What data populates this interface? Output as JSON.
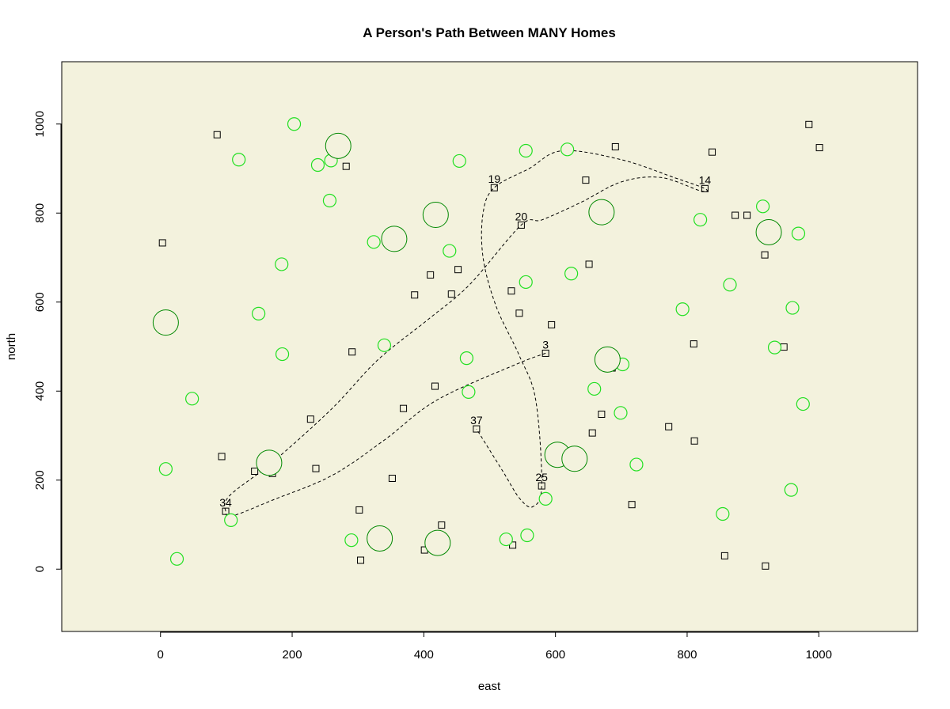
{
  "chart_data": {
    "type": "scatter",
    "title": "A Person's Path Between MANY Homes",
    "xlabel": "east",
    "ylabel": "north",
    "xlim": [
      -150,
      1150
    ],
    "ylim": [
      -140,
      1140
    ],
    "xticks": [
      0,
      200,
      400,
      600,
      800,
      1000
    ],
    "yticks": [
      0,
      200,
      400,
      600,
      800,
      1000
    ],
    "grid": false,
    "background": "#F3F2DD",
    "colors": {
      "home_marker": "#000000",
      "small_circle_edge": "#22E022",
      "large_circle_edge": "#008800",
      "circle_fill": "#F3F2DD",
      "path": "#000000"
    },
    "homes": [
      {
        "x": 3,
        "y": 733
      },
      {
        "x": 86,
        "y": 976
      },
      {
        "x": 282,
        "y": 905
      },
      {
        "x": 93,
        "y": 253
      },
      {
        "x": 143,
        "y": 220
      },
      {
        "x": 170,
        "y": 215
      },
      {
        "x": 99,
        "y": 130
      },
      {
        "x": 228,
        "y": 337
      },
      {
        "x": 236,
        "y": 226
      },
      {
        "x": 291,
        "y": 488
      },
      {
        "x": 302,
        "y": 133
      },
      {
        "x": 304,
        "y": 20
      },
      {
        "x": 352,
        "y": 204
      },
      {
        "x": 369,
        "y": 361
      },
      {
        "x": 386,
        "y": 616
      },
      {
        "x": 410,
        "y": 661
      },
      {
        "x": 417,
        "y": 411
      },
      {
        "x": 401,
        "y": 43
      },
      {
        "x": 427,
        "y": 99
      },
      {
        "x": 442,
        "y": 618
      },
      {
        "x": 452,
        "y": 673
      },
      {
        "x": 480,
        "y": 315
      },
      {
        "x": 507,
        "y": 857
      },
      {
        "x": 533,
        "y": 625
      },
      {
        "x": 535,
        "y": 54
      },
      {
        "x": 545,
        "y": 575
      },
      {
        "x": 548,
        "y": 773
      },
      {
        "x": 579,
        "y": 187
      },
      {
        "x": 585,
        "y": 485
      },
      {
        "x": 594,
        "y": 549
      },
      {
        "x": 646,
        "y": 874
      },
      {
        "x": 651,
        "y": 685
      },
      {
        "x": 656,
        "y": 306
      },
      {
        "x": 670,
        "y": 348
      },
      {
        "x": 686,
        "y": 452
      },
      {
        "x": 691,
        "y": 949
      },
      {
        "x": 716,
        "y": 145
      },
      {
        "x": 772,
        "y": 320
      },
      {
        "x": 810,
        "y": 506
      },
      {
        "x": 811,
        "y": 288
      },
      {
        "x": 827,
        "y": 855
      },
      {
        "x": 838,
        "y": 937
      },
      {
        "x": 857,
        "y": 30
      },
      {
        "x": 873,
        "y": 795
      },
      {
        "x": 891,
        "y": 795
      },
      {
        "x": 918,
        "y": 706
      },
      {
        "x": 919,
        "y": 7
      },
      {
        "x": 947,
        "y": 499
      },
      {
        "x": 985,
        "y": 999
      },
      {
        "x": 1001,
        "y": 947
      }
    ],
    "small_circles": [
      {
        "x": 203,
        "y": 1000
      },
      {
        "x": 119,
        "y": 920
      },
      {
        "x": 239,
        "y": 908
      },
      {
        "x": 259,
        "y": 918
      },
      {
        "x": 257,
        "y": 828
      },
      {
        "x": 184,
        "y": 685
      },
      {
        "x": 149,
        "y": 574
      },
      {
        "x": 185,
        "y": 483
      },
      {
        "x": 48,
        "y": 383
      },
      {
        "x": 8,
        "y": 225
      },
      {
        "x": 25,
        "y": 23
      },
      {
        "x": 107,
        "y": 110
      },
      {
        "x": 290,
        "y": 65
      },
      {
        "x": 324,
        "y": 735
      },
      {
        "x": 340,
        "y": 503
      },
      {
        "x": 439,
        "y": 715
      },
      {
        "x": 454,
        "y": 917
      },
      {
        "x": 465,
        "y": 474
      },
      {
        "x": 468,
        "y": 398
      },
      {
        "x": 525,
        "y": 67
      },
      {
        "x": 557,
        "y": 76
      },
      {
        "x": 555,
        "y": 645
      },
      {
        "x": 555,
        "y": 940
      },
      {
        "x": 585,
        "y": 158
      },
      {
        "x": 618,
        "y": 943
      },
      {
        "x": 624,
        "y": 664
      },
      {
        "x": 659,
        "y": 405
      },
      {
        "x": 702,
        "y": 460
      },
      {
        "x": 699,
        "y": 351
      },
      {
        "x": 723,
        "y": 235
      },
      {
        "x": 793,
        "y": 584
      },
      {
        "x": 820,
        "y": 785
      },
      {
        "x": 865,
        "y": 639
      },
      {
        "x": 854,
        "y": 124
      },
      {
        "x": 915,
        "y": 815
      },
      {
        "x": 933,
        "y": 498
      },
      {
        "x": 960,
        "y": 587
      },
      {
        "x": 969,
        "y": 754
      },
      {
        "x": 976,
        "y": 371
      },
      {
        "x": 958,
        "y": 178
      }
    ],
    "large_circles": [
      {
        "x": 270,
        "y": 951
      },
      {
        "x": 355,
        "y": 742
      },
      {
        "x": 418,
        "y": 796
      },
      {
        "x": 8,
        "y": 554
      },
      {
        "x": 165,
        "y": 239
      },
      {
        "x": 333,
        "y": 69
      },
      {
        "x": 421,
        "y": 59
      },
      {
        "x": 603,
        "y": 257
      },
      {
        "x": 629,
        "y": 248
      },
      {
        "x": 670,
        "y": 802
      },
      {
        "x": 679,
        "y": 471
      },
      {
        "x": 924,
        "y": 757
      }
    ],
    "labels": [
      {
        "text": "19",
        "x": 507,
        "y": 857
      },
      {
        "text": "14",
        "x": 827,
        "y": 855
      },
      {
        "text": "20",
        "x": 548,
        "y": 773
      },
      {
        "text": "3",
        "x": 585,
        "y": 485
      },
      {
        "text": "37",
        "x": 480,
        "y": 315
      },
      {
        "text": "25",
        "x": 579,
        "y": 187
      },
      {
        "text": "34",
        "x": 99,
        "y": 130
      }
    ],
    "path": [
      {
        "x": 585,
        "y": 485
      },
      {
        "x": 540,
        "y": 460
      },
      {
        "x": 420,
        "y": 380
      },
      {
        "x": 340,
        "y": 290
      },
      {
        "x": 260,
        "y": 210
      },
      {
        "x": 170,
        "y": 155
      },
      {
        "x": 110,
        "y": 120
      },
      {
        "x": 99,
        "y": 130
      },
      {
        "x": 105,
        "y": 165
      },
      {
        "x": 170,
        "y": 240
      },
      {
        "x": 260,
        "y": 360
      },
      {
        "x": 330,
        "y": 470
      },
      {
        "x": 410,
        "y": 565
      },
      {
        "x": 470,
        "y": 640
      },
      {
        "x": 548,
        "y": 773
      },
      {
        "x": 580,
        "y": 785
      },
      {
        "x": 640,
        "y": 825
      },
      {
        "x": 700,
        "y": 870
      },
      {
        "x": 760,
        "y": 880
      },
      {
        "x": 820,
        "y": 850
      },
      {
        "x": 827,
        "y": 855
      },
      {
        "x": 780,
        "y": 880
      },
      {
        "x": 700,
        "y": 920
      },
      {
        "x": 610,
        "y": 940
      },
      {
        "x": 560,
        "y": 900
      },
      {
        "x": 507,
        "y": 857
      },
      {
        "x": 490,
        "y": 800
      },
      {
        "x": 490,
        "y": 700
      },
      {
        "x": 510,
        "y": 590
      },
      {
        "x": 545,
        "y": 480
      },
      {
        "x": 570,
        "y": 380
      },
      {
        "x": 579,
        "y": 187
      },
      {
        "x": 565,
        "y": 140
      },
      {
        "x": 545,
        "y": 160
      },
      {
        "x": 520,
        "y": 220
      },
      {
        "x": 480,
        "y": 315
      }
    ]
  }
}
